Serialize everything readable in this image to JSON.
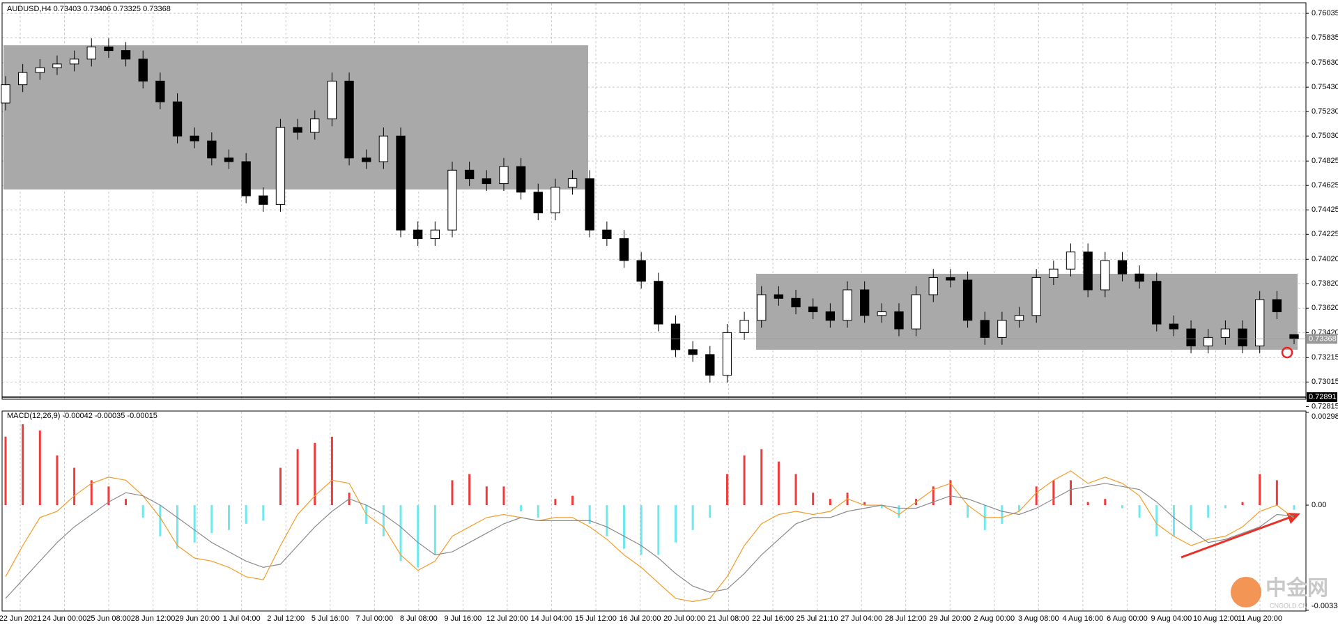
{
  "chart_data": {
    "type": "candlestick",
    "title": "AUDUSD,H4  0.73403 0.73406 0.73325 0.73368",
    "open": [
      0.753,
      0.7545,
      0.7555,
      0.7559,
      0.7562,
      0.7566,
      0.7576,
      0.7573,
      0.7566,
      0.7548,
      0.7531,
      0.7503,
      0.7499,
      0.7485,
      0.7482,
      0.7454,
      0.7447,
      0.751,
      0.7506,
      0.7517,
      0.7548,
      0.7485,
      0.7482,
      0.7503,
      0.7426,
      0.7419,
      0.7426,
      0.7475,
      0.7468,
      0.7464,
      0.7478,
      0.7457,
      0.744,
      0.7461,
      0.7468,
      0.7426,
      0.7419,
      0.7401,
      0.7384,
      0.7349,
      0.7328,
      0.7324,
      0.7307,
      0.7342,
      0.7352,
      0.7373,
      0.737,
      0.7363,
      0.7359,
      0.7352,
      0.7377,
      0.7356,
      0.7359,
      0.7345,
      0.7373,
      0.7387,
      0.7385,
      0.7352,
      0.7338,
      0.7352,
      0.7356,
      0.7387,
      0.7394,
      0.7408,
      0.7377,
      0.7401,
      0.739,
      0.7384,
      0.7349,
      0.7345,
      0.7331,
      0.7338,
      0.7345,
      0.7331,
      0.7369,
      0.73403
    ],
    "high": [
      0.7552,
      0.7562,
      0.7566,
      0.7569,
      0.7573,
      0.7583,
      0.7583,
      0.758,
      0.7573,
      0.7555,
      0.7538,
      0.751,
      0.7506,
      0.7492,
      0.7489,
      0.7461,
      0.7517,
      0.7517,
      0.7524,
      0.7555,
      0.7555,
      0.7492,
      0.751,
      0.751,
      0.7433,
      0.7433,
      0.7482,
      0.7482,
      0.7475,
      0.7485,
      0.7485,
      0.7464,
      0.7468,
      0.7475,
      0.7475,
      0.7433,
      0.7426,
      0.7408,
      0.7391,
      0.7356,
      0.7335,
      0.7331,
      0.7349,
      0.7359,
      0.738,
      0.738,
      0.7377,
      0.737,
      0.7366,
      0.7384,
      0.7384,
      0.7366,
      0.7366,
      0.738,
      0.7394,
      0.7394,
      0.7392,
      0.7359,
      0.7359,
      0.7363,
      0.7394,
      0.7401,
      0.7415,
      0.7415,
      0.7408,
      0.7408,
      0.7397,
      0.7391,
      0.7356,
      0.7352,
      0.7345,
      0.7352,
      0.7352,
      0.7376,
      0.7376,
      0.73406
    ],
    "low": [
      0.7524,
      0.7539,
      0.7549,
      0.7553,
      0.7556,
      0.756,
      0.7567,
      0.756,
      0.7542,
      0.7525,
      0.7497,
      0.7493,
      0.7479,
      0.7476,
      0.7448,
      0.7441,
      0.7441,
      0.75,
      0.75,
      0.7511,
      0.7479,
      0.7476,
      0.7476,
      0.742,
      0.7413,
      0.7413,
      0.742,
      0.7462,
      0.7458,
      0.7458,
      0.7451,
      0.7434,
      0.7434,
      0.7455,
      0.742,
      0.7413,
      0.7395,
      0.7378,
      0.7343,
      0.7322,
      0.7318,
      0.7301,
      0.7301,
      0.7336,
      0.7346,
      0.7364,
      0.7357,
      0.7353,
      0.7346,
      0.7346,
      0.735,
      0.735,
      0.7339,
      0.7339,
      0.7367,
      0.7379,
      0.7346,
      0.7332,
      0.7332,
      0.7346,
      0.735,
      0.7381,
      0.7388,
      0.7371,
      0.7371,
      0.7384,
      0.7378,
      0.7343,
      0.7339,
      0.7325,
      0.7325,
      0.7332,
      0.7325,
      0.7325,
      0.7353,
      0.73325
    ],
    "close": [
      0.7545,
      0.7555,
      0.7559,
      0.7562,
      0.7566,
      0.7576,
      0.7573,
      0.7566,
      0.7548,
      0.7531,
      0.7503,
      0.7499,
      0.7485,
      0.7482,
      0.7454,
      0.7447,
      0.751,
      0.7506,
      0.7517,
      0.7548,
      0.7485,
      0.7482,
      0.7503,
      0.7426,
      0.7419,
      0.7426,
      0.7475,
      0.7468,
      0.7464,
      0.7478,
      0.7457,
      0.744,
      0.7461,
      0.7468,
      0.7426,
      0.7419,
      0.7401,
      0.7384,
      0.7349,
      0.7328,
      0.7324,
      0.7307,
      0.7342,
      0.7352,
      0.7373,
      0.737,
      0.7363,
      0.7359,
      0.7352,
      0.7377,
      0.7356,
      0.7359,
      0.7345,
      0.7373,
      0.7387,
      0.7385,
      0.7352,
      0.7338,
      0.7352,
      0.7356,
      0.7387,
      0.7394,
      0.7408,
      0.7377,
      0.7401,
      0.739,
      0.7384,
      0.7349,
      0.7345,
      0.7331,
      0.7338,
      0.7345,
      0.7331,
      0.7369,
      0.7359,
      0.73368
    ],
    "ylim": [
      0.728,
      0.7611
    ],
    "yticks": [
      0.76035,
      0.75835,
      {
        "value": 0.7563,
        "label": "0.75630"
      },
      {
        "value": 0.7543,
        "label": "0.75430"
      },
      {
        "value": 0.7523,
        "label": "0.75230"
      },
      {
        "value": 0.7503,
        "label": "0.75030"
      },
      0.74825,
      0.74625,
      0.74425,
      0.74225,
      {
        "value": 0.7402,
        "label": "0.74020"
      },
      {
        "value": 0.7382,
        "label": "0.73820"
      },
      {
        "value": 0.7362,
        "label": "0.73620"
      },
      {
        "value": 0.7342,
        "label": "0.73420"
      },
      0.73215,
      0.73015,
      0.72815
    ],
    "current_price": 0.73368,
    "line_price": 0.72891,
    "grid": true,
    "x_labels": [
      "22 Jun 2021",
      "24 Jun 00:00",
      "25 Jun 08:00",
      "28 Jun 12:00",
      "29 Jun 20:00",
      "1 Jul 04:00",
      "2 Jul 12:00",
      "5 Jul 16:00",
      "7 Jul 00:00",
      "8 Jul 08:00",
      "9 Jul 16:00",
      "12 Jul 20:00",
      "14 Jul 04:00",
      "15 Jul 12:00",
      "16 Jul 20:00",
      "20 Jul 00:00",
      "21 Jul 08:00",
      "22 Jul 16:00",
      "25 Jul 21:10",
      "27 Jul 04:00",
      "28 Jul 12:00",
      "29 Jul 20:00",
      "2 Aug 00:00",
      "3 Aug 08:00",
      "4 Aug 16:00",
      "6 Aug 00:00",
      "9 Aug 04:00",
      "10 Aug 12:00",
      "11 Aug 20:00"
    ],
    "indicator": {
      "type": "macd",
      "title": "MACD(12,26,9) -0.00042 -0.00035 -0.00015",
      "histogram": [
        0.0022,
        0.0026,
        0.0024,
        0.0016,
        0.0012,
        0.0008,
        0.0006,
        0.0002,
        -0.0004,
        -0.001,
        -0.0014,
        -0.0012,
        -0.0009,
        -0.0008,
        -0.0006,
        -0.0005,
        0.0012,
        0.0018,
        0.002,
        0.0022,
        0.0004,
        -0.0006,
        -0.001,
        -0.0018,
        -0.002,
        -0.0016,
        0.0008,
        0.001,
        0.0006,
        0.0006,
        -0.0002,
        -0.0004,
        0.0002,
        0.0003,
        -0.0006,
        -0.001,
        -0.0014,
        -0.0016,
        -0.0016,
        -0.0012,
        -0.0008,
        -0.0004,
        0.001,
        0.0016,
        0.0018,
        0.0014,
        0.001,
        0.0004,
        0.0002,
        0.0004,
        0.0001,
        -0.0001,
        -0.0004,
        0.0002,
        0.0006,
        0.0008,
        -0.0004,
        -0.0008,
        -0.0006,
        -0.0002,
        0.0006,
        0.0008,
        0.0008,
        0.0001,
        0.0002,
        -0.0001,
        -0.0004,
        -0.001,
        -0.001,
        -0.0008,
        -0.0004,
        -0.0001,
        0.0001,
        0.001,
        0.0008,
        -0.00015
      ],
      "macd": [
        -0.0023,
        -0.0013,
        -0.0004,
        -0.0002,
        0.0003,
        0.0007,
        0.0009,
        0.0008,
        0.0003,
        -0.0004,
        -0.0013,
        -0.0017,
        -0.0018,
        -0.002,
        -0.0023,
        -0.0024,
        -0.0013,
        -0.0003,
        0.0003,
        0.0008,
        0.0007,
        -0.0003,
        -0.0007,
        -0.0016,
        -0.0021,
        -0.0018,
        -0.001,
        -0.0007,
        -0.0004,
        -0.0003,
        -0.0004,
        -0.0005,
        -0.0004,
        -0.0004,
        -0.0007,
        -0.0011,
        -0.0016,
        -0.002,
        -0.0025,
        -0.003,
        -0.0031,
        -0.003,
        -0.0023,
        -0.0013,
        -0.0006,
        -0.0003,
        -0.0002,
        -0.0003,
        -0.0002,
        0.0002,
        0,
        0,
        -0.0003,
        0.0001,
        0.0005,
        0.0007,
        0,
        -0.0004,
        -0.0004,
        -0.0002,
        0.0004,
        0.0008,
        0.0011,
        0.0007,
        0.0009,
        0.0007,
        0.0003,
        -0.0006,
        -0.001,
        -0.0013,
        -0.0011,
        -0.001,
        -0.0007,
        -0.0002,
        0,
        -0.00042
      ],
      "signal": [
        -0.003,
        -0.0024,
        -0.0018,
        -0.0012,
        -0.0007,
        -0.0003,
        0.0001,
        0.0004,
        0.0003,
        0,
        -0.0004,
        -0.0008,
        -0.0012,
        -0.0015,
        -0.0018,
        -0.002,
        -0.0019,
        -0.0013,
        -0.0007,
        -0.0002,
        0.0002,
        0,
        -0.0003,
        -0.0007,
        -0.0012,
        -0.0016,
        -0.0015,
        -0.0012,
        -0.0009,
        -0.0006,
        -0.0004,
        -0.0005,
        -0.0005,
        -0.0005,
        -0.0005,
        -0.0007,
        -0.001,
        -0.0013,
        -0.0017,
        -0.0022,
        -0.0026,
        -0.0028,
        -0.0027,
        -0.0022,
        -0.0016,
        -0.0011,
        -0.0006,
        -0.0004,
        -0.0004,
        -0.0002,
        -0.0001,
        0,
        -0.0001,
        -0.0001,
        0.0001,
        0.0003,
        0.0002,
        0,
        -0.0002,
        -0.0003,
        -0.0001,
        0.0002,
        0.0005,
        0.0006,
        0.0007,
        0.0006,
        0.0005,
        0.0001,
        -0.0004,
        -0.0008,
        -0.0012,
        -0.0011,
        -0.0009,
        -0.0007,
        -0.0003,
        -0.00035
      ],
      "ylim": [
        -0.00338,
        0.00298
      ],
      "yticks": [
        0.00298,
        {
          "value": 0,
          "label": "0.00"
        },
        -0.00338
      ],
      "colors": {
        "up": "#ef3b3b",
        "down": "#6ee8ee",
        "macd": "#f39c2a",
        "signal": "#8a8a8a"
      }
    }
  },
  "watermark": {
    "name": "中金网",
    "site": "CNGOLD.CN"
  }
}
